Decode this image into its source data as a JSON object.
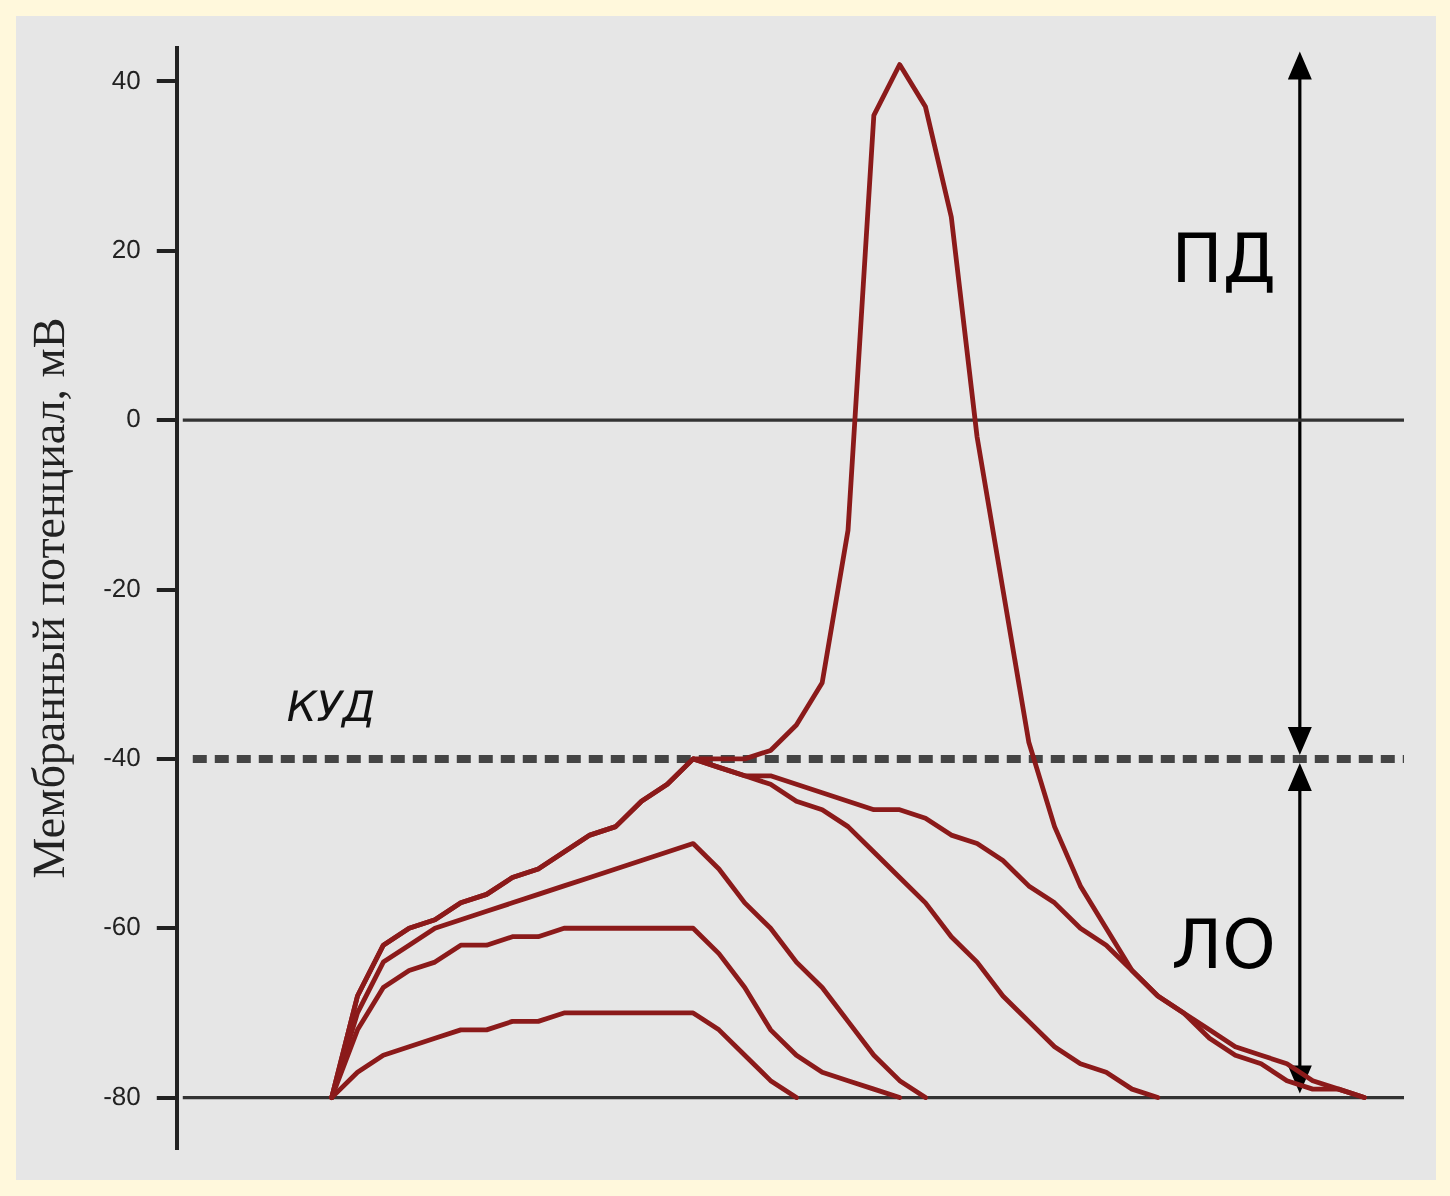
{
  "chart_data": {
    "type": "line",
    "ylabel": "Мембранный потенциал, мВ",
    "categories": [
      null,
      null,
      null,
      null,
      null,
      null,
      null,
      null,
      null,
      null,
      null,
      null,
      null,
      null,
      null,
      null,
      null,
      null,
      null,
      null,
      null,
      null,
      null,
      null,
      null,
      null,
      null,
      null,
      null,
      null,
      null,
      null,
      null,
      null,
      null,
      null,
      null,
      null,
      null,
      null,
      null,
      null,
      null,
      null,
      null,
      null,
      null,
      null,
      null
    ],
    "ylim": [
      -86,
      44
    ],
    "yticks": [
      40,
      20,
      0,
      -20,
      -40,
      -60,
      -80
    ],
    "tick_labels": "y",
    "grid": false,
    "legend": false,
    "marker": "none",
    "series": [
      {
        "color": "#8b1a1a",
        "values": [
          null,
          null,
          null,
          null,
          null,
          null,
          -80,
          -77,
          -75,
          -74,
          -73,
          -72,
          -72,
          -71,
          -71,
          -70,
          -70,
          -70,
          -70,
          -70,
          -70,
          -72,
          -75,
          -78,
          -80,
          null,
          null,
          null,
          null,
          null,
          null,
          null,
          null,
          null,
          null,
          null,
          null,
          null,
          null,
          null,
          null,
          null,
          null,
          null,
          null,
          null,
          null,
          null,
          null
        ]
      },
      {
        "color": "#8b1a1a",
        "values": [
          null,
          null,
          null,
          null,
          null,
          null,
          -80,
          -72,
          -67,
          -65,
          -64,
          -62,
          -62,
          -61,
          -61,
          -60,
          -60,
          -60,
          -60,
          -60,
          -60,
          -63,
          -67,
          -72,
          -75,
          -77,
          -78,
          -79,
          -80,
          null,
          null,
          null,
          null,
          null,
          null,
          null,
          null,
          null,
          null,
          null,
          null,
          null,
          null,
          null,
          null,
          null,
          null,
          null,
          null
        ]
      },
      {
        "color": "#8b1a1a",
        "values": [
          null,
          null,
          null,
          null,
          null,
          null,
          -80,
          -70,
          -64,
          -62,
          -60,
          -59,
          -58,
          -57,
          -56,
          -55,
          -54,
          -53,
          -52,
          -51,
          -50,
          -53,
          -57,
          -60,
          -64,
          -67,
          -71,
          -75,
          -78,
          -80,
          null,
          null,
          null,
          null,
          null,
          null,
          null,
          null,
          null,
          null,
          null,
          null,
          null,
          null,
          null,
          null,
          null,
          null,
          null
        ]
      },
      {
        "color": "#8b1a1a",
        "values": [
          null,
          null,
          null,
          null,
          null,
          null,
          -80,
          -68,
          -62,
          -60,
          -59,
          -57,
          -56,
          -54,
          -53,
          -51,
          -49,
          -48,
          -45,
          -43,
          -40,
          -41,
          -42,
          -43,
          -45,
          -46,
          -48,
          -51,
          -54,
          -57,
          -61,
          -64,
          -68,
          -71,
          -74,
          -76,
          -77,
          -79,
          -80,
          null,
          null,
          null,
          null,
          null,
          null,
          null,
          null,
          null,
          null
        ]
      },
      {
        "color": "#8b1a1a",
        "values": [
          null,
          null,
          null,
          null,
          null,
          null,
          null,
          null,
          null,
          null,
          null,
          null,
          null,
          null,
          null,
          null,
          null,
          null,
          null,
          null,
          -40,
          -41,
          -42,
          -42,
          -43,
          -44,
          -45,
          -46,
          -46,
          -47,
          -49,
          -50,
          -52,
          -55,
          -57,
          -60,
          -62,
          -65,
          -68,
          -70,
          -73,
          -75,
          -76,
          -78,
          -79,
          -79,
          -80,
          null,
          null
        ]
      },
      {
        "color": "#8b1a1a",
        "values": [
          null,
          null,
          null,
          null,
          null,
          null,
          -80,
          -68,
          -62,
          -60,
          -59,
          -57,
          -56,
          -54,
          -53,
          -51,
          -49,
          -48,
          -45,
          -43,
          -40,
          -40,
          -40,
          -39,
          -36,
          -31,
          -13,
          36,
          42,
          37,
          24,
          -2,
          -20,
          -38,
          -48,
          -55,
          -60,
          -65,
          -68,
          -70,
          -72,
          -74,
          -75,
          -76,
          -78,
          -79,
          -80,
          null,
          null
        ]
      }
    ],
    "ref_lines": [
      {
        "axis": "y",
        "value": 0,
        "color": "#333333",
        "line_style": "solid"
      },
      {
        "axis": "y",
        "value": -40,
        "label": "КУД",
        "color": "#444444",
        "line_style": "dashed"
      },
      {
        "axis": "y",
        "value": -80,
        "color": "#333333",
        "line_style": "solid"
      }
    ],
    "annotations": [
      "ПД",
      "ЛО"
    ]
  }
}
